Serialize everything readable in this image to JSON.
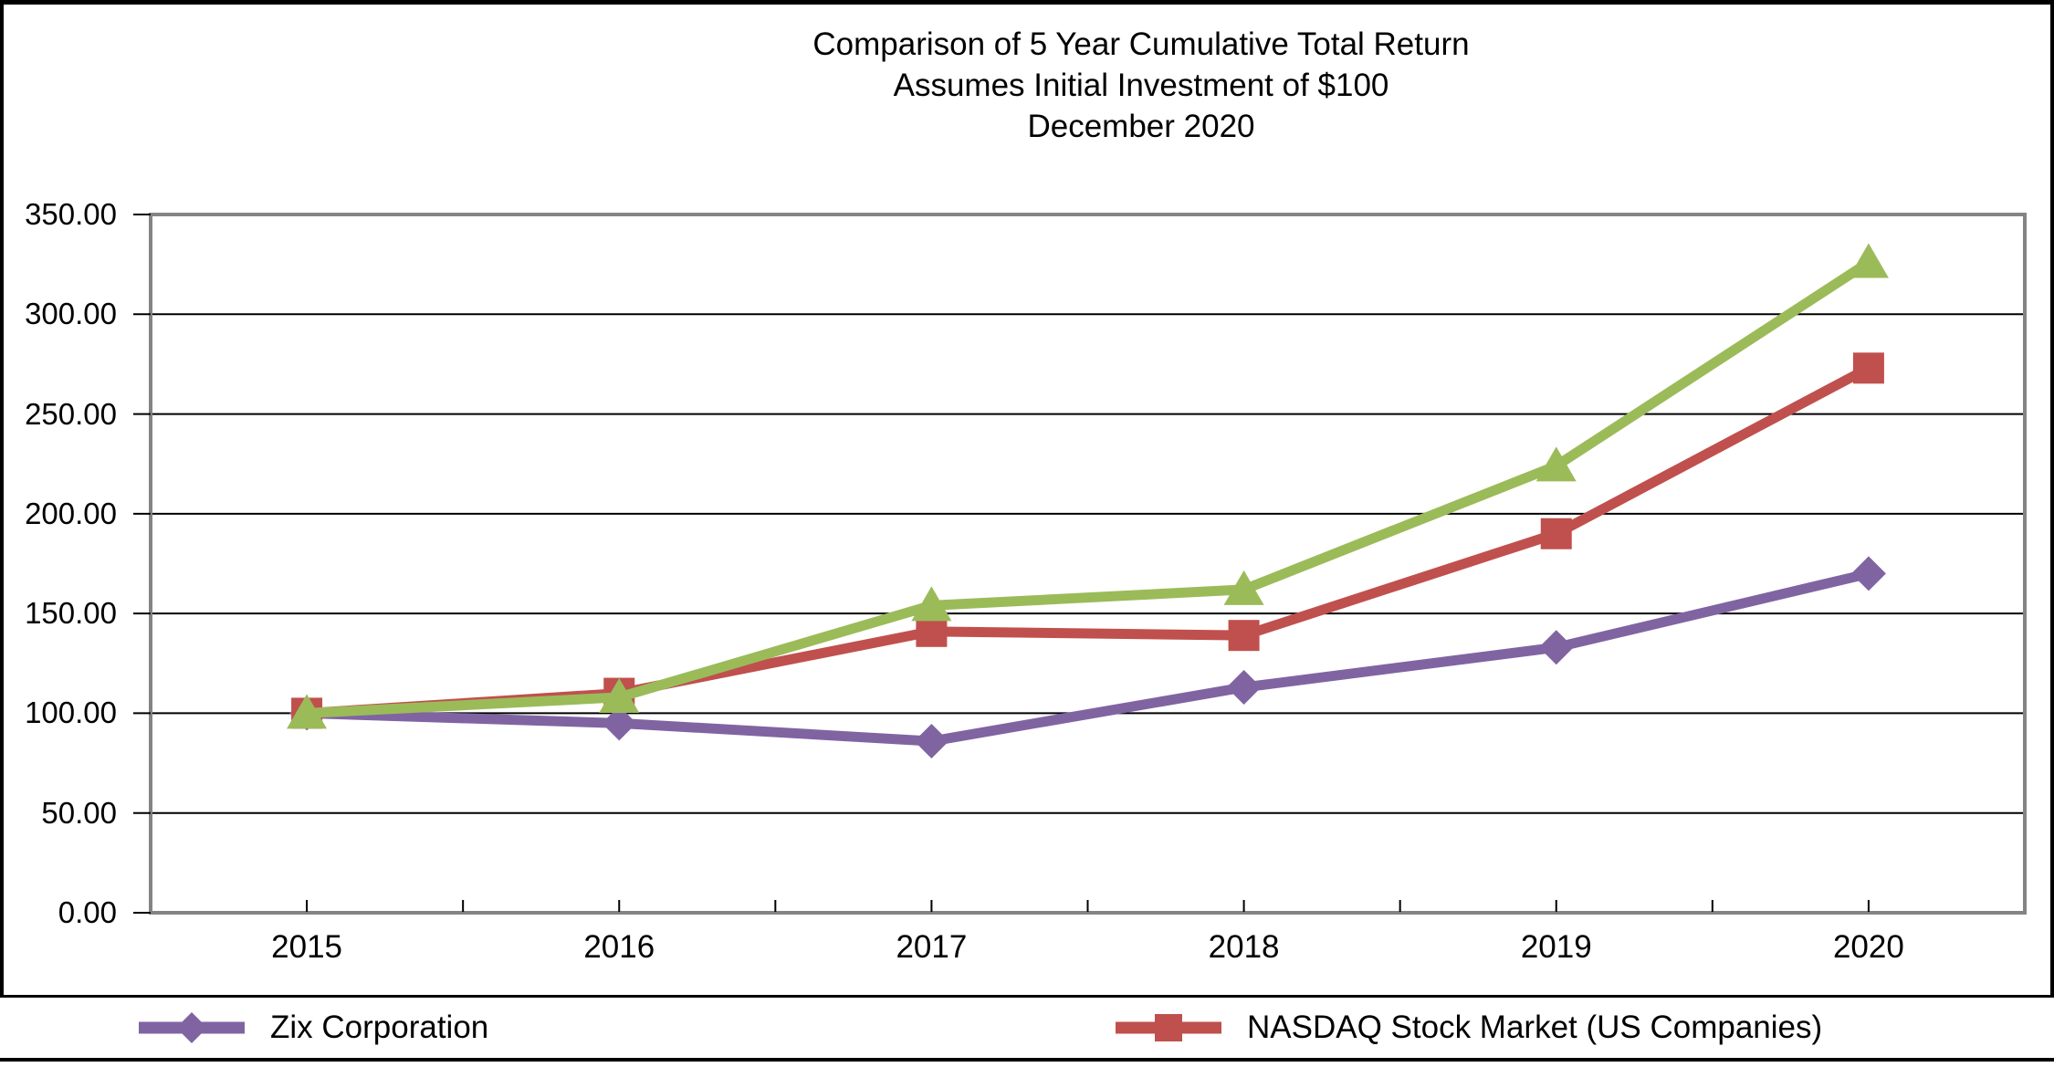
{
  "chart": {
    "title_line1": "Comparison of 5 Year Cumulative Total Return",
    "title_line2": "Assumes Initial Investment of $100",
    "title_line3": "December 2020"
  },
  "legend": {
    "items": [
      {
        "label": "Zix Corporation",
        "marker": "diamond",
        "color": "#8064A2"
      },
      {
        "label": "NASDAQ Stock Market (US Companies)",
        "marker": "square",
        "color": "#C0504D"
      }
    ]
  },
  "colors": {
    "zix_purple": "#8064A2",
    "nasdaq_red": "#C0504D",
    "triangle_green": "#9BBB59",
    "plot_border_gray": "#848484",
    "gridline_black": "#000000"
  },
  "chart_data": {
    "type": "line",
    "title": "Comparison of 5 Year Cumulative Total Return",
    "subtitle": "Assumes Initial Investment of $100",
    "subtitle2": "December 2020",
    "categories": [
      "2015",
      "2016",
      "2017",
      "2018",
      "2019",
      "2020"
    ],
    "series": [
      {
        "id": "zix",
        "name": "Zix Corporation",
        "marker": "diamond",
        "color": "#8064A2",
        "in_legend": true,
        "values": [
          100,
          95,
          86,
          113,
          133,
          170
        ]
      },
      {
        "id": "nasdaq-us",
        "name": "NASDAQ Stock Market (US Companies)",
        "marker": "square",
        "color": "#C0504D",
        "in_legend": true,
        "values": [
          100,
          110,
          141,
          139,
          190,
          273
        ]
      },
      {
        "id": "green-triangle-series",
        "name": "",
        "marker": "triangle",
        "color": "#9BBB59",
        "in_legend": false,
        "values": [
          100,
          108,
          154,
          162,
          224,
          326
        ]
      }
    ],
    "xlabel": "",
    "ylabel": "",
    "ylim": [
      0,
      350
    ],
    "y_tick_step": 50,
    "y_tick_labels": [
      "350.00",
      "300.00",
      "250.00",
      "200.00",
      "150.00",
      "100.00",
      "50.00",
      "0.00"
    ],
    "grid": true,
    "legend_position": "bottom"
  }
}
